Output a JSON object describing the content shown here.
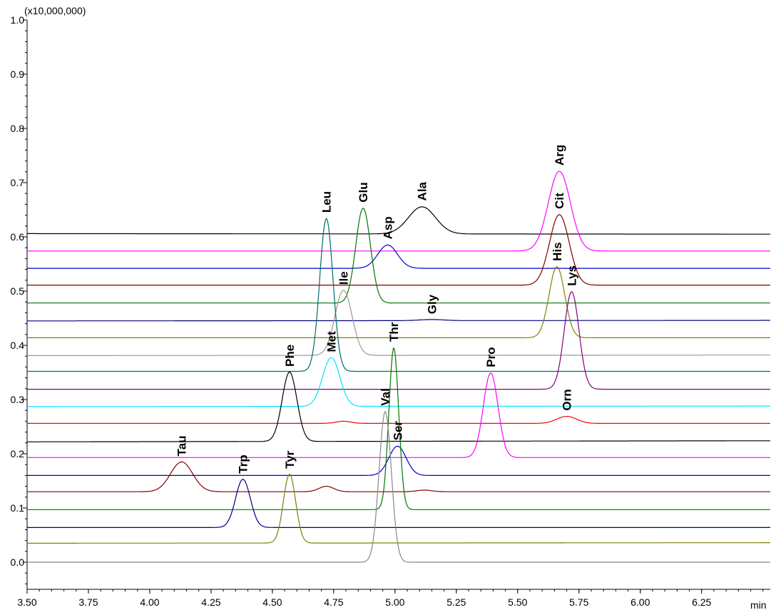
{
  "chart_data": {
    "type": "line",
    "title": "",
    "xlabel": "min",
    "ylabel": "",
    "y_multiplier_label": "(x10,000,000)",
    "xlim": [
      3.5,
      6.53
    ],
    "ylim": [
      -0.05,
      1.0
    ],
    "x_ticks": [
      "3.50",
      "3.75",
      "4.00",
      "4.25",
      "4.50",
      "4.75",
      "5.00",
      "5.25",
      "5.50",
      "5.75",
      "6.00",
      "6.25"
    ],
    "y_ticks": [
      "0.0",
      "0.1",
      "0.2",
      "0.3",
      "0.4",
      "0.5",
      "0.6",
      "0.7",
      "0.8",
      "0.9",
      "1.0"
    ],
    "grid": false,
    "legend": "none",
    "series": [
      {
        "color": "#000000",
        "baseline": 0.606,
        "end": 0.605,
        "peaks": [
          {
            "label": "Ala",
            "x": 5.11,
            "top": 0.656,
            "w": 0.055
          }
        ]
      },
      {
        "color": "#ff00ff",
        "baseline": 0.574,
        "end": 0.574,
        "peaks": [
          {
            "label": "Arg",
            "x": 5.67,
            "top": 0.721,
            "w": 0.045
          }
        ]
      },
      {
        "color": "#0000cc",
        "baseline": 0.542,
        "end": 0.542,
        "peaks": [
          {
            "label": "Asp",
            "x": 4.97,
            "top": 0.585,
            "w": 0.04
          }
        ]
      },
      {
        "color": "#800000",
        "baseline": 0.511,
        "end": 0.511,
        "peaks": [
          {
            "label": "Cit",
            "x": 5.67,
            "top": 0.641,
            "w": 0.04
          }
        ]
      },
      {
        "color": "#007700",
        "baseline": 0.478,
        "end": 0.478,
        "peaks": [
          {
            "label": "Glu",
            "x": 4.87,
            "top": 0.653,
            "w": 0.03
          }
        ]
      },
      {
        "color": "#000080",
        "baseline": 0.445,
        "end": 0.446,
        "peaks": [
          {
            "label": "Gly",
            "x": 5.15,
            "top": 0.447,
            "w": 0.05
          }
        ]
      },
      {
        "color": "#808000",
        "baseline": 0.414,
        "end": 0.414,
        "peaks": [
          {
            "label": "His",
            "x": 5.66,
            "top": 0.545,
            "w": 0.032
          }
        ]
      },
      {
        "color": "#999999",
        "baseline": 0.381,
        "end": 0.382,
        "peaks": [
          {
            "label": "Ile",
            "x": 4.79,
            "top": 0.501,
            "w": 0.035
          }
        ]
      },
      {
        "color": "#006b6b",
        "baseline": 0.352,
        "end": 0.352,
        "peaks": [
          {
            "label": "Leu",
            "x": 4.72,
            "top": 0.634,
            "w": 0.027
          }
        ]
      },
      {
        "color": "#800080",
        "baseline": 0.319,
        "end": 0.319,
        "peaks": [
          {
            "label": "Lys",
            "x": 5.72,
            "top": 0.499,
            "w": 0.03
          }
        ]
      },
      {
        "color": "#00e5ff",
        "baseline": 0.287,
        "end": 0.288,
        "peaks": [
          {
            "label": "Met",
            "x": 4.74,
            "top": 0.377,
            "w": 0.035
          }
        ]
      },
      {
        "color": "#ff0000",
        "baseline": 0.256,
        "end": 0.256,
        "peaks": [
          {
            "label": "Orn",
            "x": 5.7,
            "top": 0.269,
            "w": 0.04
          },
          {
            "label": "",
            "x": 4.79,
            "top": 0.26,
            "w": 0.03
          }
        ]
      },
      {
        "color": "#000000",
        "baseline": 0.222,
        "end": 0.224,
        "peaks": [
          {
            "label": "Phe",
            "x": 4.57,
            "top": 0.35,
            "w": 0.03
          }
        ]
      },
      {
        "color": "#ff00ff",
        "baseline": 0.193,
        "end": 0.193,
        "peaks": [
          {
            "label": "Pro",
            "x": 5.39,
            "top": 0.349,
            "w": 0.03
          }
        ]
      },
      {
        "color": "#0000cc",
        "baseline": 0.16,
        "end": 0.16,
        "peaks": [
          {
            "label": "Ser",
            "x": 5.01,
            "top": 0.214,
            "w": 0.035
          }
        ]
      },
      {
        "color": "#800000",
        "baseline": 0.13,
        "end": 0.13,
        "peaks": [
          {
            "label": "Tau",
            "x": 4.13,
            "top": 0.185,
            "w": 0.045
          },
          {
            "label": "",
            "x": 4.72,
            "top": 0.14,
            "w": 0.03
          },
          {
            "label": "",
            "x": 5.12,
            "top": 0.133,
            "w": 0.03
          }
        ]
      },
      {
        "color": "#007700",
        "baseline": 0.097,
        "end": 0.097,
        "peaks": [
          {
            "label": "Thr",
            "x": 4.995,
            "top": 0.396,
            "w": 0.02
          }
        ]
      },
      {
        "color": "#000080",
        "baseline": 0.064,
        "end": 0.064,
        "peaks": [
          {
            "label": "Trp",
            "x": 4.38,
            "top": 0.153,
            "w": 0.03
          }
        ]
      },
      {
        "color": "#808000",
        "baseline": 0.035,
        "end": 0.036,
        "peaks": [
          {
            "label": "Tyr",
            "x": 4.57,
            "top": 0.162,
            "w": 0.025
          }
        ]
      },
      {
        "color": "#888888",
        "baseline": 0.0,
        "end": 0.0,
        "peaks": [
          {
            "label": "Val",
            "x": 4.96,
            "top": 0.278,
            "w": 0.025
          }
        ]
      }
    ]
  }
}
